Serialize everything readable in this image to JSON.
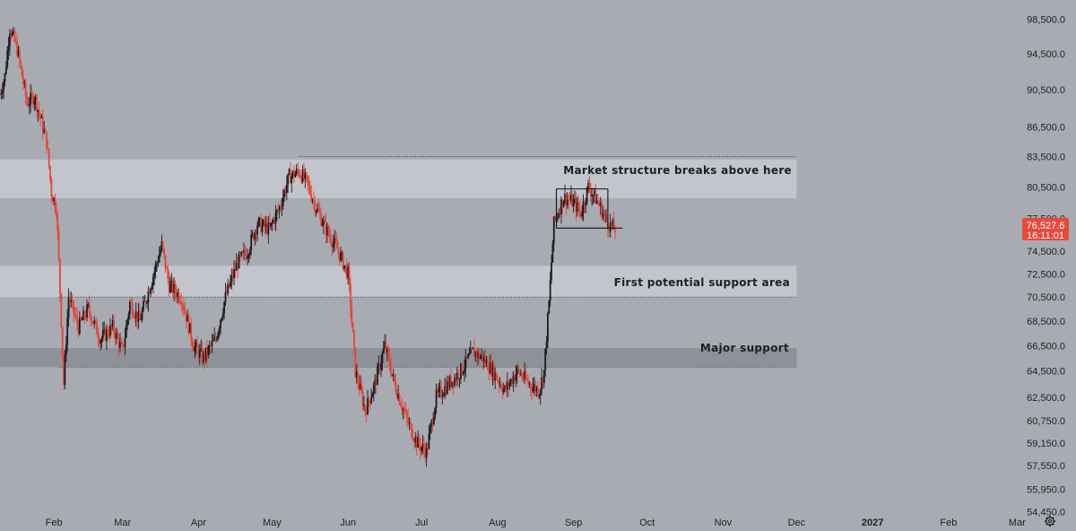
{
  "chart_data": {
    "type": "candlestick",
    "title": "",
    "xlabel": "",
    "ylabel": "",
    "y_scale": "log",
    "ylim": [
      53200,
      100800
    ],
    "y_ticks": [
      "98,500.0",
      "94,500.0",
      "90,500.0",
      "86,500.0",
      "83,500.0",
      "80,500.0",
      "77,500.0",
      "74,500.0",
      "72,500.0",
      "70,500.0",
      "68,500.0",
      "66,500.0",
      "64,500.0",
      "62,500.0",
      "60,750.0",
      "59,150.0",
      "57,550.0",
      "55,950.0",
      "54,450.0"
    ],
    "x_range": [
      "2026-01-10",
      "2027-03-25"
    ],
    "x_ticks": [
      {
        "label": "Feb",
        "date": "2026-02-01"
      },
      {
        "label": "Mar",
        "date": "2026-03-01"
      },
      {
        "label": "Apr",
        "date": "2026-04-01"
      },
      {
        "label": "May",
        "date": "2026-05-01"
      },
      {
        "label": "Jun",
        "date": "2026-06-01"
      },
      {
        "label": "Jul",
        "date": "2026-07-01"
      },
      {
        "label": "Aug",
        "date": "2026-08-01"
      },
      {
        "label": "Sep",
        "date": "2026-09-01"
      },
      {
        "label": "Oct",
        "date": "2026-10-01"
      },
      {
        "label": "Nov",
        "date": "2026-11-01"
      },
      {
        "label": "Dec",
        "date": "2026-12-01"
      },
      {
        "label": "2027",
        "date": "2027-01-01",
        "bold": true
      },
      {
        "label": "Feb",
        "date": "2027-02-01"
      },
      {
        "label": "Mar",
        "date": "2027-03-01"
      }
    ],
    "price_path": [
      [
        "2026-01-10",
        90000
      ],
      [
        "2026-01-12",
        92000
      ],
      [
        "2026-01-14",
        97500
      ],
      [
        "2026-01-17",
        95000
      ],
      [
        "2026-01-21",
        89000
      ],
      [
        "2026-01-24",
        89800
      ],
      [
        "2026-01-27",
        87000
      ],
      [
        "2026-01-29",
        85000
      ],
      [
        "2026-01-31",
        80000
      ],
      [
        "2026-02-02",
        78500
      ],
      [
        "2026-02-05",
        63500
      ],
      [
        "2026-02-07",
        70500
      ],
      [
        "2026-02-11",
        68000
      ],
      [
        "2026-02-15",
        69500
      ],
      [
        "2026-02-20",
        67000
      ],
      [
        "2026-02-25",
        68000
      ],
      [
        "2026-03-01",
        66000
      ],
      [
        "2026-03-04",
        70000
      ],
      [
        "2026-03-08",
        68500
      ],
      [
        "2026-03-13",
        72000
      ],
      [
        "2026-03-17",
        75000
      ],
      [
        "2026-03-20",
        71500
      ],
      [
        "2026-03-25",
        70500
      ],
      [
        "2026-03-30",
        66500
      ],
      [
        "2026-04-03",
        65500
      ],
      [
        "2026-04-08",
        67000
      ],
      [
        "2026-04-12",
        70500
      ],
      [
        "2026-04-17",
        73500
      ],
      [
        "2026-04-21",
        74500
      ],
      [
        "2026-04-25",
        77000
      ],
      [
        "2026-04-30",
        76500
      ],
      [
        "2026-05-04",
        78500
      ],
      [
        "2026-05-08",
        81500
      ],
      [
        "2026-05-12",
        82000
      ],
      [
        "2026-05-15",
        81000
      ],
      [
        "2026-05-19",
        78500
      ],
      [
        "2026-05-23",
        76500
      ],
      [
        "2026-05-28",
        74500
      ],
      [
        "2026-06-01",
        72500
      ],
      [
        "2026-06-04",
        64500
      ],
      [
        "2026-06-08",
        61500
      ],
      [
        "2026-06-12",
        63500
      ],
      [
        "2026-06-16",
        66500
      ],
      [
        "2026-06-20",
        63500
      ],
      [
        "2026-06-25",
        60800
      ],
      [
        "2026-06-29",
        59200
      ],
      [
        "2026-07-03",
        58500
      ],
      [
        "2026-07-07",
        62500
      ],
      [
        "2026-07-12",
        63500
      ],
      [
        "2026-07-17",
        64500
      ],
      [
        "2026-07-22",
        66000
      ],
      [
        "2026-07-26",
        65500
      ],
      [
        "2026-07-30",
        64500
      ],
      [
        "2026-08-04",
        63000
      ],
      [
        "2026-08-09",
        64500
      ],
      [
        "2026-08-14",
        63500
      ],
      [
        "2026-08-18",
        63000
      ],
      [
        "2026-08-20",
        64500
      ],
      [
        "2026-08-22",
        70000
      ],
      [
        "2026-08-24",
        77000
      ],
      [
        "2026-08-28",
        79500
      ],
      [
        "2026-09-01",
        79000
      ],
      [
        "2026-09-04",
        78000
      ],
      [
        "2026-09-07",
        80500
      ],
      [
        "2026-09-11",
        79000
      ],
      [
        "2026-09-15",
        77000
      ],
      [
        "2026-09-18",
        76500
      ]
    ],
    "zones": [
      {
        "label": "Market structure breaks above here",
        "from": 79400,
        "to": 83200,
        "top_line": 83500,
        "start": "2026-01-10",
        "end": "2026-12-01",
        "shade": "light"
      },
      {
        "label": "First potential support area",
        "from": 70500,
        "to": 73200,
        "start": "2026-01-10",
        "end": "2026-12-01",
        "shade": "light"
      },
      {
        "label": "Major support",
        "from": 64800,
        "to": 66300,
        "start": "2026-01-10",
        "end": "2026-12-01",
        "shade": "dark"
      }
    ],
    "consolidation_box": {
      "start": "2026-08-25",
      "end": "2026-09-15",
      "high": 80300,
      "low": 76600
    },
    "last_price": {
      "value": "76,527.6",
      "countdown": "16:11:01"
    },
    "colors": {
      "background": "#a9abb3",
      "up": "#1b1c20",
      "down": "#e54535",
      "zone_light": "#c3c5cc",
      "zone_dark": "#8f9198",
      "price_tag": "#e8493b"
    }
  },
  "settings_icon": "gear-icon"
}
